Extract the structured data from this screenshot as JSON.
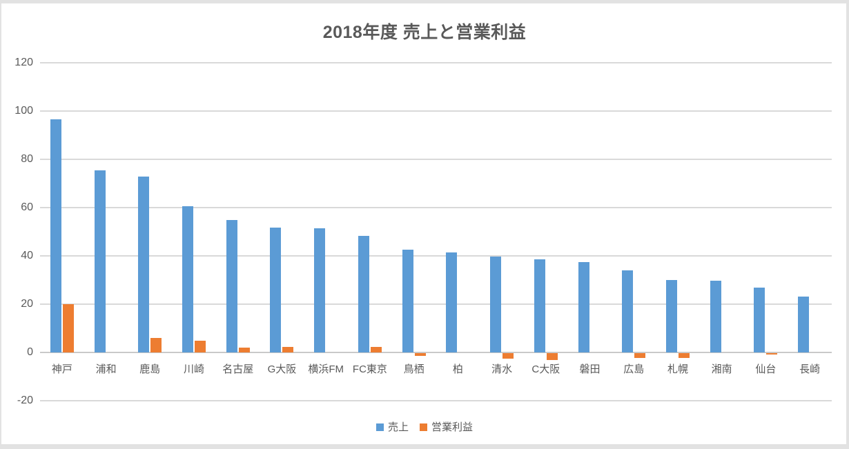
{
  "title": "2018年度 売上と営業利益",
  "colors": {
    "sales": "#5B9BD5",
    "profit": "#ED7D31",
    "gridline": "#D9D9D9",
    "zero_axis": "#C9C9C9",
    "axis_text": "#595959",
    "title_text": "#595959",
    "frame": "#E2E2E2",
    "plot_background": "#FFFFFF"
  },
  "y_axis": {
    "ticks": [
      120,
      100,
      80,
      60,
      40,
      20,
      0,
      -20
    ]
  },
  "legend": {
    "items": [
      {
        "label": "売上",
        "color": "#5B9BD5"
      },
      {
        "label": "営業利益",
        "color": "#ED7D31"
      }
    ]
  },
  "chart_data": {
    "type": "bar",
    "title": "2018年度 売上と営業利益",
    "categories": [
      "神戸",
      "浦和",
      "鹿島",
      "川崎",
      "名古屋",
      "G大阪",
      "横浜FM",
      "FC東京",
      "鳥栖",
      "柏",
      "清水",
      "C大阪",
      "磐田",
      "広島",
      "札幌",
      "湘南",
      "仙台",
      "長崎"
    ],
    "series": [
      {
        "name": "売上",
        "color": "#5B9BD5",
        "values": [
          96.7,
          75.3,
          73.0,
          60.5,
          54.9,
          51.7,
          51.3,
          48.3,
          42.6,
          41.5,
          39.8,
          38.7,
          37.5,
          33.9,
          29.9,
          29.8,
          26.9,
          23.1
        ]
      },
      {
        "name": "営業利益",
        "color": "#ED7D31",
        "values": [
          20.0,
          0,
          6.0,
          4.8,
          2.0,
          2.4,
          0,
          2.3,
          -1.0,
          0,
          -2.3,
          -2.9,
          0,
          -2.1,
          -2.1,
          0,
          -0.5,
          0
        ]
      }
    ],
    "xlabel": "",
    "ylabel": "",
    "ylim": [
      -20,
      120
    ],
    "ytick_interval": 20,
    "grid": true,
    "legend_position": "bottom"
  }
}
